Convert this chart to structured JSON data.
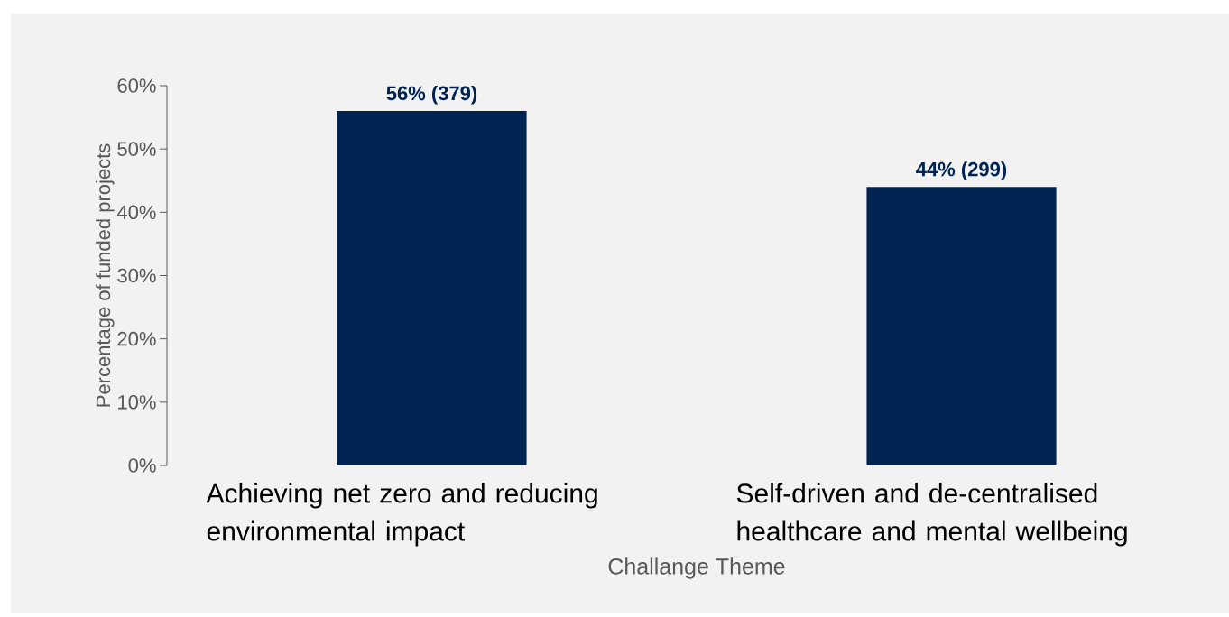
{
  "chart_data": {
    "type": "bar",
    "xlabel": "Challange Theme",
    "ylabel": "Percentage of funded projects",
    "categories": [
      "Achieving net zero and reducing environmental impact",
      "Self-driven and de-centralised healthcare and mental wellbeing"
    ],
    "values": [
      56,
      44
    ],
    "color": "#002452",
    "value_labels": [
      "56% (379)",
      "44% (299)"
    ],
    "ylim": [
      0,
      60
    ],
    "yticks": [
      {
        "value": 0,
        "label": "0%"
      },
      {
        "value": 10,
        "label": "10%"
      },
      {
        "value": 20,
        "label": "20%"
      },
      {
        "value": 30,
        "label": "30%"
      },
      {
        "value": 40,
        "label": "40%"
      },
      {
        "value": 50,
        "label": "50%"
      },
      {
        "value": 60,
        "label": "60%"
      }
    ]
  }
}
